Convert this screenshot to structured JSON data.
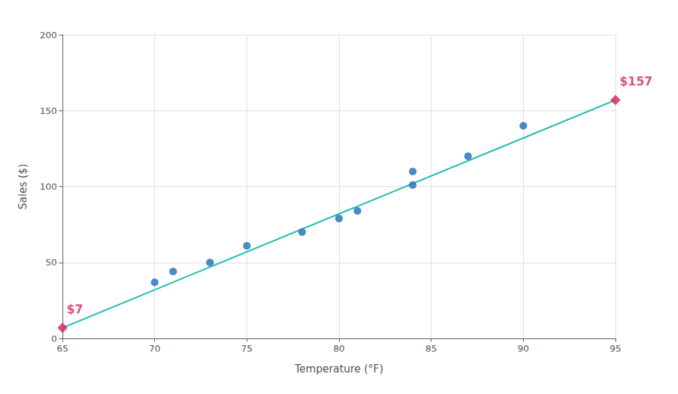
{
  "chart_data": {
    "type": "scatter",
    "xlabel": "Temperature (°F)",
    "ylabel": "Sales ($)",
    "series": [
      {
        "type": "line",
        "x": [
          65,
          95
        ],
        "values": [
          7,
          157
        ],
        "color": "#20c0b0"
      },
      {
        "type": "scatter",
        "x": [
          70,
          71,
          73,
          75,
          78,
          80,
          81,
          84,
          84,
          87,
          90
        ],
        "values": [
          37,
          44,
          50,
          61,
          70,
          79,
          84,
          101,
          110,
          120,
          140
        ],
        "color": "#1f6db5",
        "marker": "circle"
      },
      {
        "type": "scatter",
        "x": [
          65,
          95
        ],
        "values": [
          7,
          157
        ],
        "color": "#d42060",
        "marker": "diamond",
        "data_labels": true,
        "value_labels": [
          "$7",
          "$157"
        ]
      }
    ],
    "xlim": [
      65,
      95
    ],
    "xticks": [
      65,
      70,
      75,
      80,
      85,
      90,
      95
    ],
    "ylim": [
      0,
      200
    ],
    "yticks": [
      0,
      50,
      100,
      150,
      200
    ],
    "grid": true
  }
}
